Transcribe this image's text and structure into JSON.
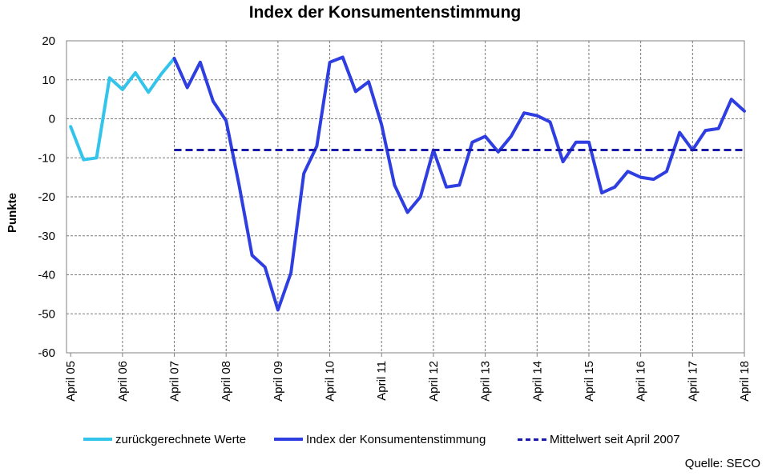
{
  "chart_data": {
    "type": "line",
    "title": "Index der Konsumentenstimmung",
    "xlabel": "",
    "ylabel": "Punkte",
    "ylim": [
      -60,
      20
    ],
    "yticks": [
      20,
      10,
      0,
      -10,
      -20,
      -30,
      -40,
      -50,
      -60
    ],
    "ytick_labels": [
      "20",
      "10",
      "0",
      "-10",
      "-20",
      "-30",
      "-40",
      "-50",
      "-60"
    ],
    "xlim": [
      2005.25,
      2018.33
    ],
    "categories": [
      "April 05",
      "April 06",
      "April 07",
      "April 08",
      "April 09",
      "April 10",
      "April 11",
      "April 12",
      "April 13",
      "April 14",
      "April 15",
      "April 16",
      "April 17",
      "April 18"
    ],
    "grid": true,
    "legend_position": "bottom",
    "series": [
      {
        "name": "zurückgerechnete Werte",
        "color": "#33c4ec",
        "style": "solid",
        "x": [
          2005.33,
          2005.58,
          2005.83,
          2006.08,
          2006.33,
          2006.58,
          2006.83,
          2007.08,
          2007.33
        ],
        "y": [
          -2,
          -10.5,
          -10,
          10.5,
          7.5,
          11.8,
          6.8,
          11.5,
          15.5
        ]
      },
      {
        "name": "Index der Konsumentenstimmung",
        "color": "#2e3ee0",
        "style": "solid",
        "x": [
          2007.33,
          2007.58,
          2007.83,
          2008.08,
          2008.33,
          2008.58,
          2008.83,
          2009.08,
          2009.33,
          2009.58,
          2009.83,
          2010.08,
          2010.33,
          2010.58,
          2010.83,
          2011.08,
          2011.33,
          2011.58,
          2011.83,
          2012.08,
          2012.33,
          2012.58,
          2012.83,
          2013.08,
          2013.33,
          2013.58,
          2013.83,
          2014.08,
          2014.33,
          2014.58,
          2014.83,
          2015.08,
          2015.33,
          2015.58,
          2015.83,
          2016.08,
          2016.33,
          2016.58,
          2016.83,
          2017.08,
          2017.33,
          2017.58,
          2017.83,
          2018.08,
          2018.33
        ],
        "y": [
          15.5,
          8,
          14.5,
          4.5,
          -0.5,
          -17,
          -35,
          -38,
          -49,
          -39.5,
          -14,
          -7,
          14.5,
          15.8,
          7,
          9.5,
          -1.5,
          -17,
          -24,
          -20,
          -8,
          -17.5,
          -17,
          -6,
          -4.5,
          -8.5,
          -4.5,
          1.5,
          0.8,
          -0.8,
          -11,
          -6,
          -6,
          -19,
          -17.5,
          -13.5,
          -15,
          -15.5,
          -13.5,
          -3.5,
          -8,
          -3,
          -2.5,
          5,
          2
        ]
      },
      {
        "name": "Mittelwert seit April 2007",
        "color": "#1a1aa8",
        "style": "dashed",
        "x": [
          2007.33,
          2018.33
        ],
        "y": [
          -8,
          -8
        ]
      }
    ]
  },
  "source_note": "Quelle:  SECO"
}
